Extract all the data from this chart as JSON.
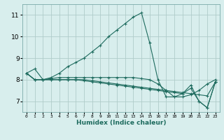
{
  "xlabel": "Humidex (Indice chaleur)",
  "ylabel": "",
  "background_color": "#d8eeed",
  "grid_color": "#b0ccca",
  "line_color": "#1e6b5e",
  "xlim": [
    -0.5,
    23.5
  ],
  "ylim": [
    6.5,
    11.5
  ],
  "yticks": [
    7,
    8,
    9,
    10,
    11
  ],
  "xtick_labels": [
    "0",
    "1",
    "2",
    "3",
    "4",
    "5",
    "6",
    "7",
    "8",
    "9",
    "10",
    "11",
    "12",
    "13",
    "14",
    "15",
    "16",
    "17",
    "18",
    "19",
    "20",
    "21",
    "22",
    "23"
  ],
  "lines": [
    {
      "x": [
        0,
        1,
        2,
        3,
        4,
        5,
        6,
        7,
        8,
        9,
        10,
        11,
        12,
        13,
        14,
        15,
        16,
        17,
        18,
        19,
        20,
        21,
        22,
        23
      ],
      "y": [
        8.3,
        8.5,
        8.0,
        8.1,
        8.3,
        8.6,
        8.8,
        9.0,
        9.3,
        9.6,
        10.0,
        10.3,
        10.6,
        10.9,
        11.1,
        9.7,
        8.0,
        7.2,
        7.2,
        7.35,
        7.6,
        7.0,
        6.7,
        7.9
      ]
    },
    {
      "x": [
        0,
        1,
        2,
        3,
        4,
        5,
        6,
        7,
        8,
        9,
        10,
        11,
        12,
        13,
        14,
        15,
        16,
        17,
        18,
        19,
        20,
        21,
        22,
        23
      ],
      "y": [
        8.3,
        8.0,
        8.0,
        8.05,
        8.1,
        8.1,
        8.1,
        8.1,
        8.1,
        8.1,
        8.1,
        8.1,
        8.1,
        8.1,
        8.05,
        8.0,
        7.8,
        7.5,
        7.2,
        7.2,
        7.3,
        7.5,
        7.8,
        8.0
      ]
    },
    {
      "x": [
        0,
        1,
        2,
        3,
        4,
        5,
        6,
        7,
        8,
        9,
        10,
        11,
        12,
        13,
        14,
        15,
        16,
        17,
        18,
        19,
        20,
        21,
        22,
        23
      ],
      "y": [
        8.3,
        8.0,
        8.0,
        8.0,
        8.0,
        8.0,
        8.0,
        8.0,
        7.95,
        7.9,
        7.85,
        7.8,
        7.75,
        7.7,
        7.65,
        7.6,
        7.55,
        7.5,
        7.45,
        7.4,
        7.35,
        7.3,
        7.25,
        7.9
      ]
    },
    {
      "x": [
        0,
        1,
        2,
        3,
        4,
        5,
        6,
        7,
        8,
        9,
        10,
        11,
        12,
        13,
        14,
        15,
        16,
        17,
        18,
        19,
        20,
        21,
        22,
        23
      ],
      "y": [
        8.3,
        8.0,
        8.0,
        8.0,
        8.0,
        8.0,
        8.0,
        7.95,
        7.9,
        7.85,
        7.8,
        7.75,
        7.7,
        7.65,
        7.6,
        7.55,
        7.5,
        7.45,
        7.4,
        7.35,
        7.75,
        7.0,
        6.7,
        7.9
      ]
    }
  ]
}
